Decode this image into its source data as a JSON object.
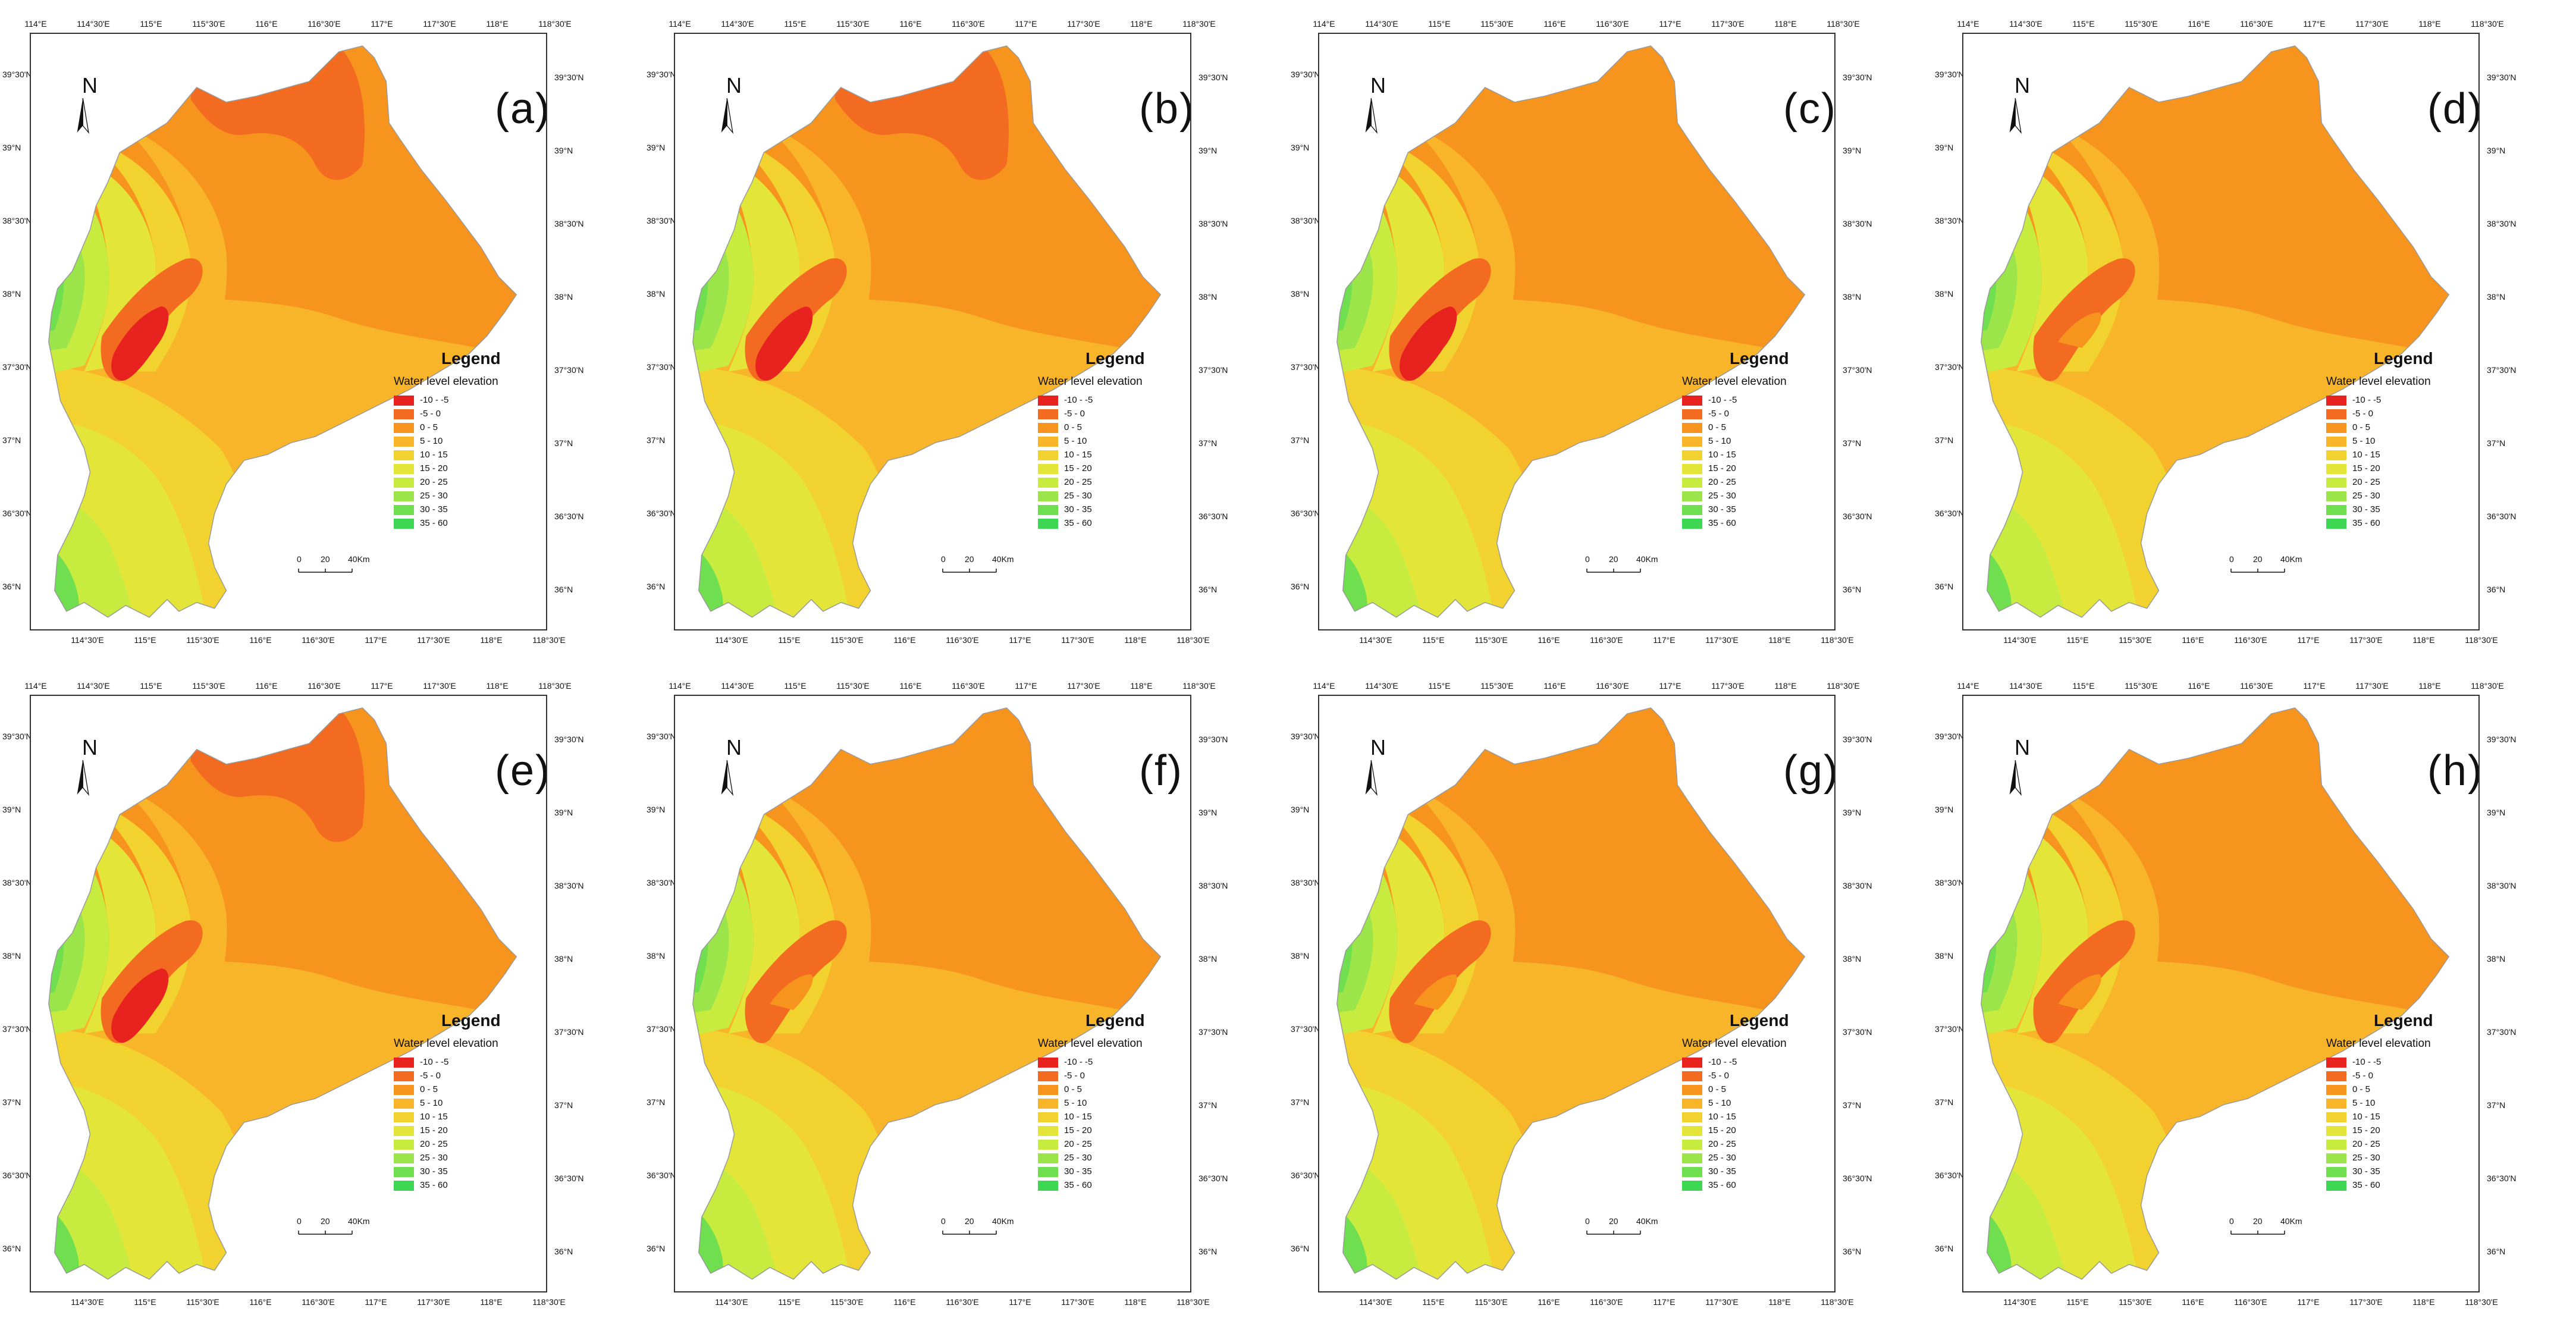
{
  "figure": {
    "panels": [
      {
        "label": "(a)",
        "scheme": "a"
      },
      {
        "label": "(b)",
        "scheme": "b"
      },
      {
        "label": "(c)",
        "scheme": "c"
      },
      {
        "label": "(d)",
        "scheme": "d"
      },
      {
        "label": "(e)",
        "scheme": "e"
      },
      {
        "label": "(f)",
        "scheme": "f"
      },
      {
        "label": "(g)",
        "scheme": "g"
      },
      {
        "label": "(h)",
        "scheme": "h"
      }
    ],
    "ticks_top": [
      "114°E",
      "114°30'E",
      "115°E",
      "115°30'E",
      "116°E",
      "116°30'E",
      "117°E",
      "117°30'E",
      "118°E",
      "118°30'E"
    ],
    "ticks_bottom": [
      "114°30'E",
      "115°E",
      "115°30'E",
      "116°E",
      "116°30'E",
      "117°E",
      "117°30'E",
      "118°E",
      "118°30'E"
    ],
    "ticks_left": [
      "39°30'N",
      "39°N",
      "38°30'N",
      "38°N",
      "37°30'N",
      "37°N",
      "36°30'N",
      "36°N"
    ],
    "ticks_right": [
      "39°30'N",
      "39°N",
      "38°30'N",
      "38°N",
      "37°30'N",
      "37°N",
      "36°30'N",
      "36°N"
    ],
    "north_label": "N",
    "legend": {
      "title": "Legend",
      "subtitle": "Water level elevation",
      "classes": [
        {
          "label": "-10 - -5",
          "color": "#e8231f"
        },
        {
          "label": "-5 - 0",
          "color": "#f26b21"
        },
        {
          "label": "0 - 5",
          "color": "#f7941e"
        },
        {
          "label": "5 - 10",
          "color": "#f8b529"
        },
        {
          "label": "10 - 15",
          "color": "#f2d22e"
        },
        {
          "label": "15 - 20",
          "color": "#e3e639"
        },
        {
          "label": "20 - 25",
          "color": "#c7ec3f"
        },
        {
          "label": "25 - 30",
          "color": "#9be54a"
        },
        {
          "label": "30 - 35",
          "color": "#6fdf4f"
        },
        {
          "label": "35 - 60",
          "color": "#3ed753"
        }
      ]
    },
    "scale": {
      "label_0": "0",
      "label_20": "20",
      "label_40": "40Km"
    }
  }
}
